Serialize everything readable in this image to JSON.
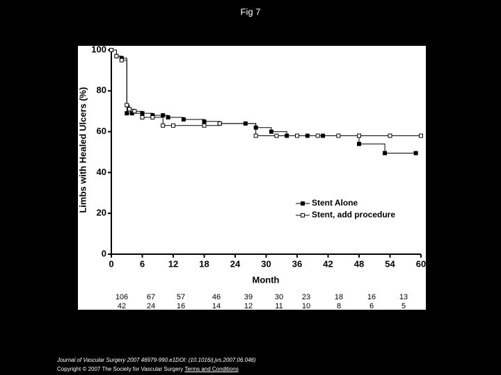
{
  "chart_data": {
    "type": "step",
    "title": "Fig 7",
    "x_label": "Month",
    "y_label": "Limbs with Healed Ulcers (%)",
    "xlim": [
      0,
      60
    ],
    "xticks": [
      0,
      6,
      12,
      18,
      24,
      30,
      36,
      42,
      48,
      54,
      60
    ],
    "ylim": [
      0,
      100
    ],
    "yticks": [
      0,
      20,
      40,
      60,
      80,
      100
    ],
    "series": [
      {
        "name": "Stent Alone",
        "color": "#000000",
        "marker": "filled",
        "x": [
          0,
          1,
          2,
          3,
          4,
          6,
          8,
          10,
          11,
          14,
          18,
          21,
          26,
          28,
          31,
          34,
          38,
          41,
          48,
          53,
          59
        ],
        "values": [
          100,
          97,
          96,
          69,
          69,
          69,
          68,
          68,
          67,
          66,
          65,
          64,
          64,
          62,
          60,
          58,
          58,
          58,
          54,
          49.5,
          49.5
        ],
        "at_risk": [
          "106",
          "67",
          "57",
          "46",
          "39",
          "30",
          "23",
          "18",
          "16",
          "13"
        ]
      },
      {
        "name": "Stent, add procedure",
        "color": "#000000",
        "marker": "open",
        "x": [
          0,
          1,
          2,
          3,
          3.5,
          4.5,
          6,
          8,
          10,
          12,
          18,
          21,
          28,
          32,
          36,
          40,
          44,
          48,
          54,
          60
        ],
        "values": [
          100,
          97,
          95,
          73,
          71,
          70,
          67,
          67,
          63,
          63,
          63,
          64,
          58,
          58,
          58,
          58,
          58,
          58,
          58,
          58
        ],
        "at_risk": [
          "42",
          "24",
          "16",
          "14",
          "12",
          "11",
          "10",
          "8",
          "6",
          "5"
        ]
      }
    ]
  },
  "footer": {
    "citation": "Journal of Vascular Surgery 2007 46979-990.e1DOI: (10.1016/j.jvs.2007.06.046)",
    "copyright": "Copyright © 2007 The Society for Vascular Surgery ",
    "link": "Terms and Conditions"
  }
}
